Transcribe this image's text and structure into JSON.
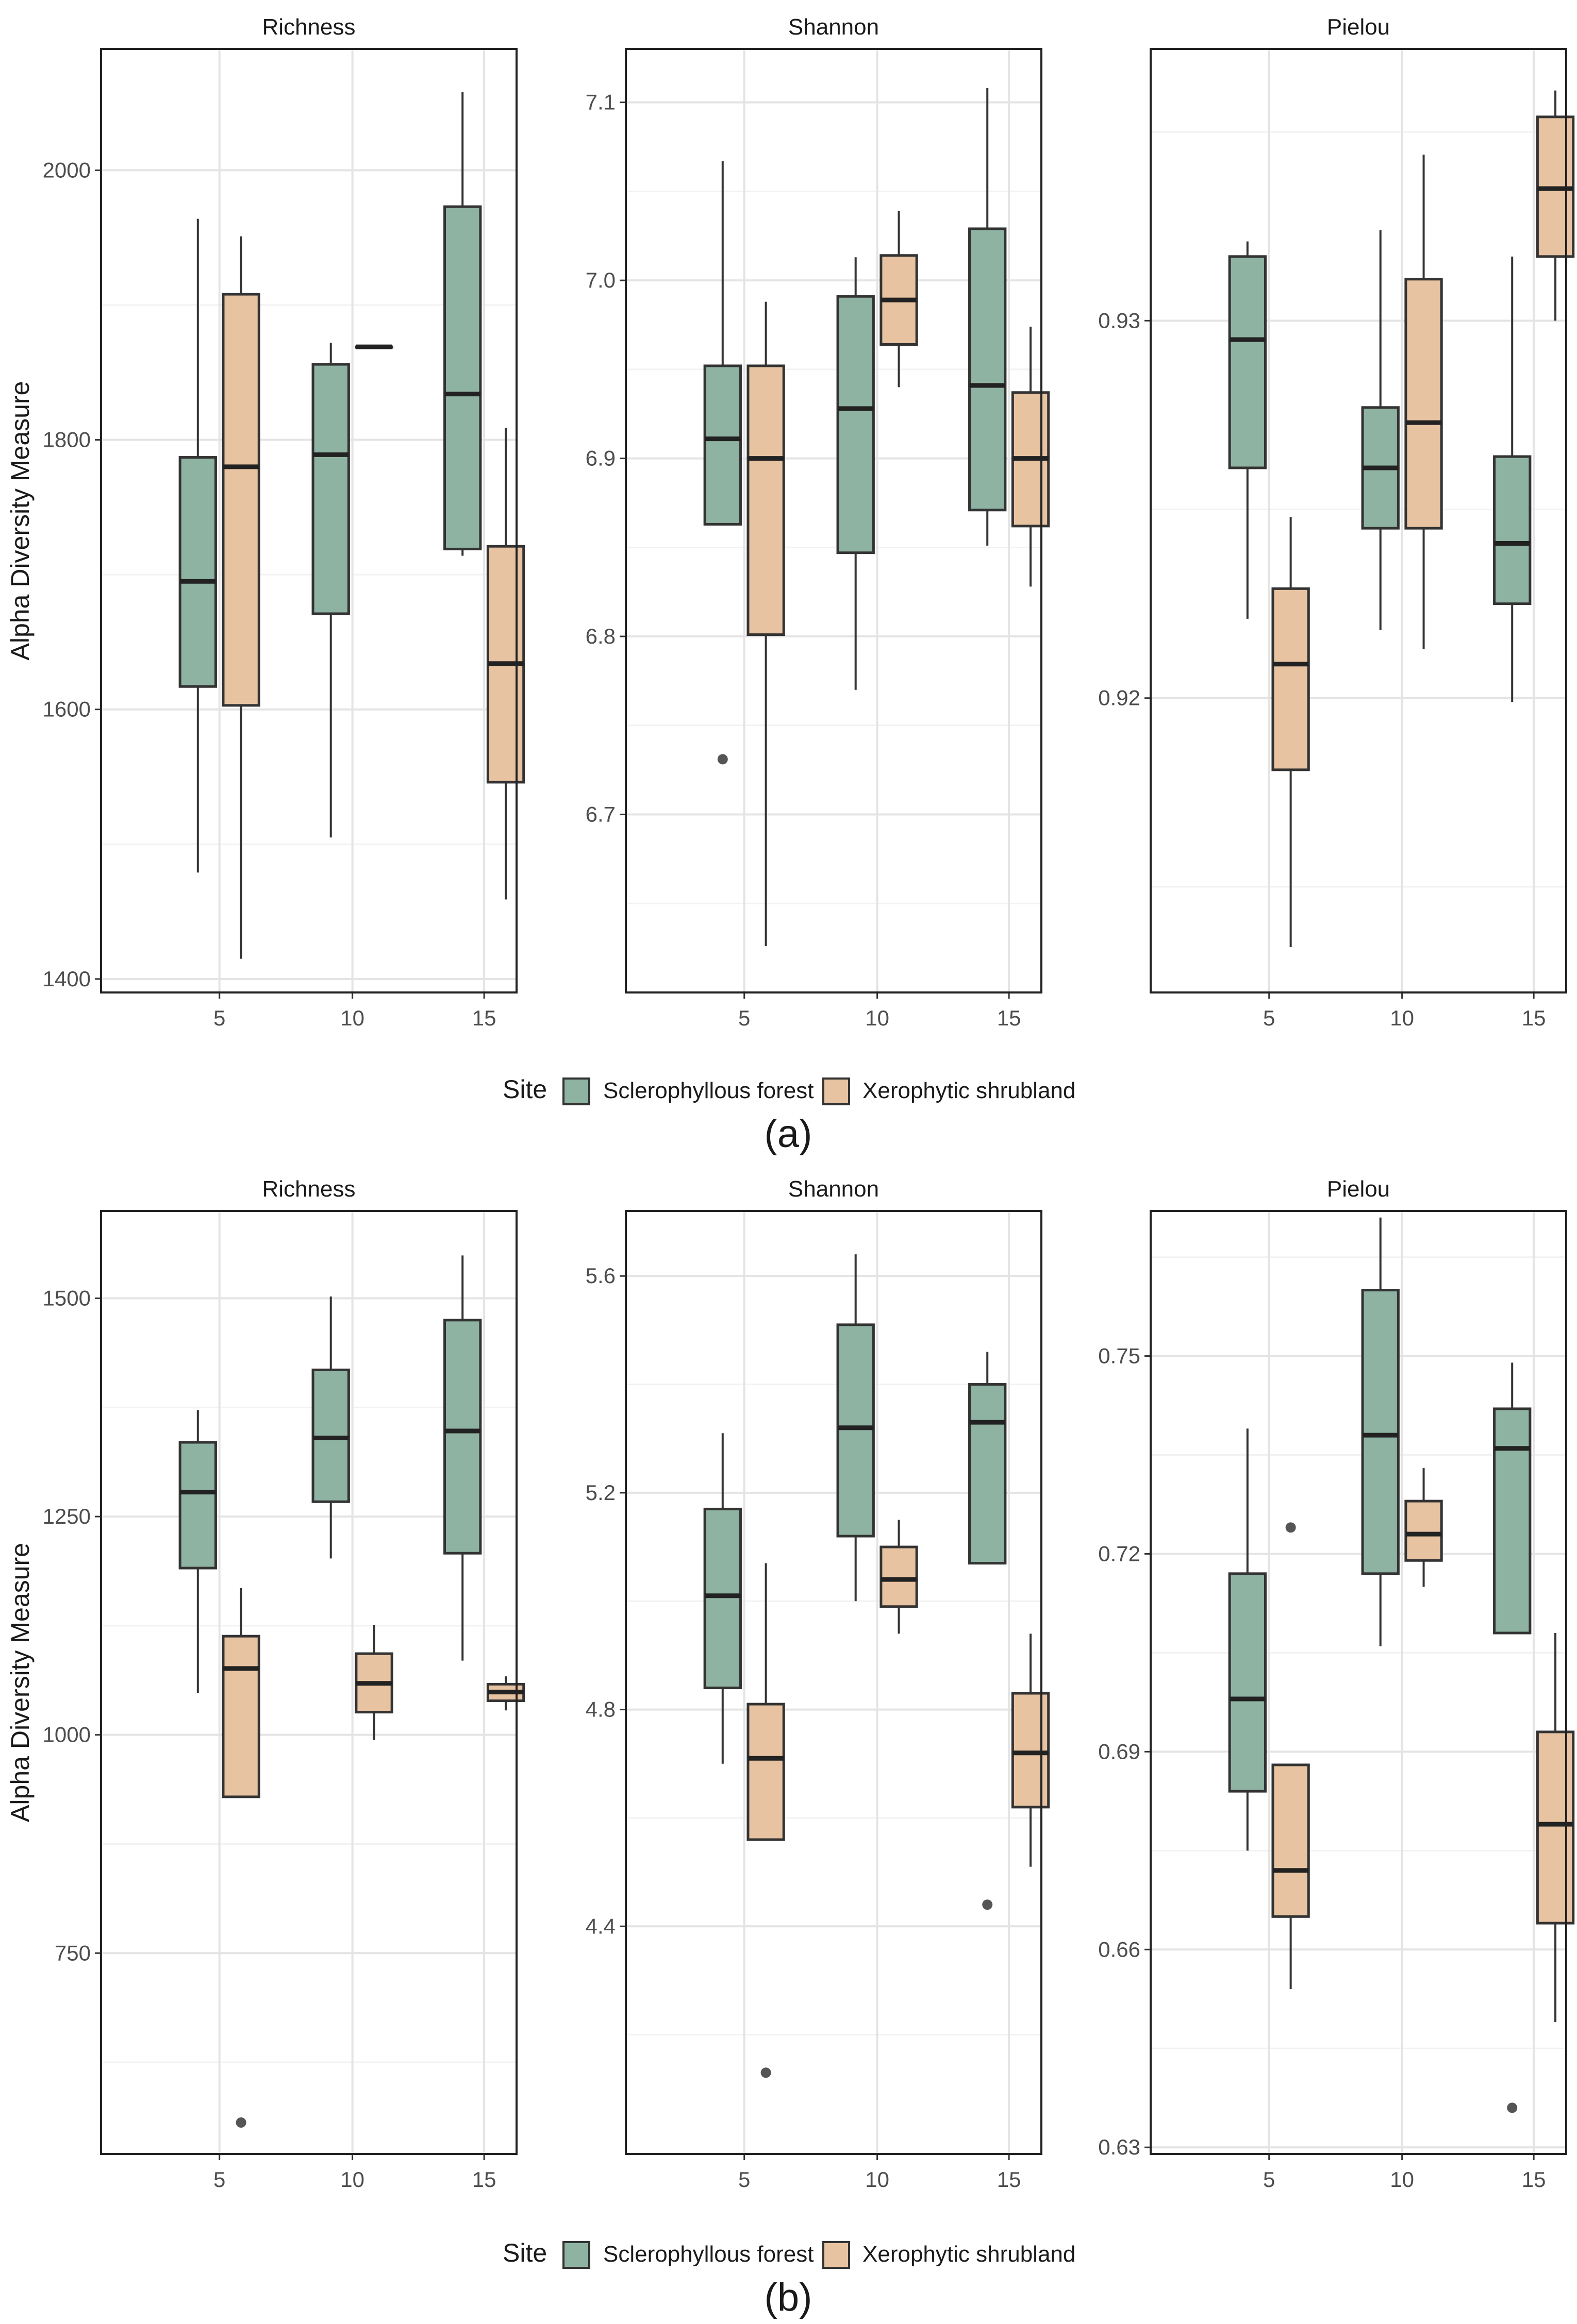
{
  "colors": {
    "sclerophyllous": "#8fb3a2",
    "xerophytic": "#e8c3a1",
    "box_stroke": "#333333",
    "grid_major": "#e4e4e4",
    "grid_minor": "#f2f2f2",
    "outlier": "#555555"
  },
  "legend": {
    "title": "Site",
    "items": [
      "Sclerophyllous forest",
      "Xerophytic shrubland"
    ]
  },
  "ylabel": "Alpha Diversity Measure",
  "panel_labels": [
    "(a)",
    "(b)"
  ],
  "chart_data": [
    {
      "type": "boxplot",
      "panel": "(a)",
      "title": "Richness",
      "xlabel": "",
      "ylabel": "Alpha Diversity Measure",
      "categories": [
        "5",
        "10",
        "15"
      ],
      "ylim": [
        1390,
        2090
      ],
      "yticks": [
        1400,
        1600,
        1800,
        2000
      ],
      "series": [
        {
          "name": "Sclerophyllous forest",
          "boxes": [
            {
              "x": "5",
              "min": 1479,
              "q1": 1617,
              "median": 1695,
              "q3": 1787,
              "max": 1964,
              "outliers": []
            },
            {
              "x": "10",
              "min": 1505,
              "q1": 1671,
              "median": 1789,
              "q3": 1856,
              "max": 1872,
              "outliers": []
            },
            {
              "x": "15",
              "min": 1714,
              "q1": 1719,
              "median": 1834,
              "q3": 1973,
              "max": 2058,
              "outliers": []
            }
          ]
        },
        {
          "name": "Xerophytic shrubland",
          "boxes": [
            {
              "x": "5",
              "min": 1415,
              "q1": 1603,
              "median": 1780,
              "q3": 1908,
              "max": 1951,
              "outliers": []
            },
            {
              "x": "10",
              "min": 1869,
              "q1": 1869,
              "median": 1869,
              "q3": 1869,
              "max": 1869,
              "outliers": []
            },
            {
              "x": "15",
              "min": 1459,
              "q1": 1546,
              "median": 1634,
              "q3": 1721,
              "max": 1809,
              "outliers": []
            }
          ]
        }
      ]
    },
    {
      "type": "boxplot",
      "panel": "(a)",
      "title": "Shannon",
      "xlabel": "",
      "ylabel": "",
      "categories": [
        "5",
        "10",
        "15"
      ],
      "ylim": [
        6.6,
        7.13
      ],
      "yticks": [
        6.7,
        6.8,
        6.9,
        7.0,
        7.1
      ],
      "series": [
        {
          "name": "Sclerophyllous forest",
          "boxes": [
            {
              "x": "5",
              "min": 6.863,
              "q1": 6.863,
              "median": 6.911,
              "q3": 6.952,
              "max": 7.067,
              "outliers": [
                6.731
              ]
            },
            {
              "x": "10",
              "min": 6.77,
              "q1": 6.847,
              "median": 6.928,
              "q3": 6.991,
              "max": 7.013,
              "outliers": []
            },
            {
              "x": "15",
              "min": 6.851,
              "q1": 6.871,
              "median": 6.941,
              "q3": 7.029,
              "max": 7.108,
              "outliers": []
            }
          ]
        },
        {
          "name": "Xerophytic shrubland",
          "boxes": [
            {
              "x": "5",
              "min": 6.626,
              "q1": 6.801,
              "median": 6.9,
              "q3": 6.952,
              "max": 6.988,
              "outliers": []
            },
            {
              "x": "10",
              "min": 6.94,
              "q1": 6.964,
              "median": 6.989,
              "q3": 7.014,
              "max": 7.039,
              "outliers": []
            },
            {
              "x": "15",
              "min": 6.828,
              "q1": 6.862,
              "median": 6.9,
              "q3": 6.937,
              "max": 6.974,
              "outliers": []
            }
          ]
        }
      ]
    },
    {
      "type": "boxplot",
      "panel": "(a)",
      "title": "Pielou",
      "xlabel": "",
      "ylabel": "",
      "categories": [
        "5",
        "10",
        "15"
      ],
      "ylim": [
        0.9122,
        0.9372
      ],
      "yticks": [
        0.92,
        0.93
      ],
      "series": [
        {
          "name": "Sclerophyllous forest",
          "boxes": [
            {
              "x": "5",
              "min": 0.9221,
              "q1": 0.9261,
              "median": 0.9295,
              "q3": 0.9317,
              "max": 0.9321,
              "outliers": []
            },
            {
              "x": "10",
              "min": 0.9218,
              "q1": 0.9245,
              "median": 0.9261,
              "q3": 0.9277,
              "max": 0.9324,
              "outliers": []
            },
            {
              "x": "15",
              "min": 0.9199,
              "q1": 0.9225,
              "median": 0.9241,
              "q3": 0.9264,
              "max": 0.9317,
              "outliers": []
            }
          ]
        },
        {
          "name": "Xerophytic shrubland",
          "boxes": [
            {
              "x": "5",
              "min": 0.9134,
              "q1": 0.9181,
              "median": 0.9209,
              "q3": 0.9229,
              "max": 0.9248,
              "outliers": []
            },
            {
              "x": "10",
              "min": 0.9213,
              "q1": 0.9245,
              "median": 0.9273,
              "q3": 0.9311,
              "max": 0.9344,
              "outliers": []
            },
            {
              "x": "15",
              "min": 0.93,
              "q1": 0.9317,
              "median": 0.9335,
              "q3": 0.9354,
              "max": 0.9361,
              "outliers": []
            }
          ]
        }
      ]
    },
    {
      "type": "boxplot",
      "panel": "(b)",
      "title": "Richness",
      "xlabel": "",
      "ylabel": "Alpha Diversity Measure",
      "categories": [
        "5",
        "10",
        "15"
      ],
      "ylim": [
        520,
        1600
      ],
      "yticks": [
        750,
        1000,
        1250,
        1500
      ],
      "series": [
        {
          "name": "Sclerophyllous forest",
          "boxes": [
            {
              "x": "5",
              "min": 1048,
              "q1": 1191,
              "median": 1278,
              "q3": 1335,
              "max": 1372,
              "outliers": []
            },
            {
              "x": "10",
              "min": 1202,
              "q1": 1267,
              "median": 1340,
              "q3": 1418,
              "max": 1502,
              "outliers": []
            },
            {
              "x": "15",
              "min": 1085,
              "q1": 1208,
              "median": 1348,
              "q3": 1475,
              "max": 1549,
              "outliers": []
            }
          ]
        },
        {
          "name": "Xerophytic shrubland",
          "boxes": [
            {
              "x": "5",
              "min": 929,
              "q1": 929,
              "median": 1076,
              "q3": 1113,
              "max": 1168,
              "outliers": [
                556
              ]
            },
            {
              "x": "10",
              "min": 994,
              "q1": 1026,
              "median": 1059,
              "q3": 1093,
              "max": 1126,
              "outliers": []
            },
            {
              "x": "15",
              "min": 1028,
              "q1": 1039,
              "median": 1049,
              "q3": 1058,
              "max": 1067,
              "outliers": []
            }
          ]
        }
      ]
    },
    {
      "type": "boxplot",
      "panel": "(b)",
      "title": "Shannon",
      "xlabel": "",
      "ylabel": "",
      "categories": [
        "5",
        "10",
        "15"
      ],
      "ylim": [
        3.98,
        5.72
      ],
      "yticks": [
        4.4,
        4.8,
        5.2,
        5.6
      ],
      "series": [
        {
          "name": "Sclerophyllous forest",
          "boxes": [
            {
              "x": "5",
              "min": 4.7,
              "q1": 4.84,
              "median": 5.01,
              "q3": 5.17,
              "max": 5.31,
              "outliers": []
            },
            {
              "x": "10",
              "min": 5.0,
              "q1": 5.12,
              "median": 5.32,
              "q3": 5.51,
              "max": 5.64,
              "outliers": []
            },
            {
              "x": "15",
              "min": 5.07,
              "q1": 5.07,
              "median": 5.33,
              "q3": 5.4,
              "max": 5.46,
              "outliers": [
                4.44
              ]
            }
          ]
        },
        {
          "name": "Xerophytic shrubland",
          "boxes": [
            {
              "x": "5",
              "min": 4.56,
              "q1": 4.56,
              "median": 4.71,
              "q3": 4.81,
              "max": 5.07,
              "outliers": [
                4.13
              ]
            },
            {
              "x": "10",
              "min": 4.94,
              "q1": 4.99,
              "median": 5.04,
              "q3": 5.1,
              "max": 5.15,
              "outliers": []
            },
            {
              "x": "15",
              "min": 4.51,
              "q1": 4.62,
              "median": 4.72,
              "q3": 4.83,
              "max": 4.94,
              "outliers": []
            }
          ]
        }
      ]
    },
    {
      "type": "boxplot",
      "panel": "(b)",
      "title": "Pielou",
      "xlabel": "",
      "ylabel": "",
      "categories": [
        "5",
        "10",
        "15"
      ],
      "ylim": [
        0.629,
        0.772
      ],
      "yticks": [
        0.63,
        0.66,
        0.69,
        0.72,
        0.75
      ],
      "series": [
        {
          "name": "Sclerophyllous forest",
          "boxes": [
            {
              "x": "5",
              "min": 0.675,
              "q1": 0.684,
              "median": 0.698,
              "q3": 0.717,
              "max": 0.739,
              "outliers": []
            },
            {
              "x": "10",
              "min": 0.706,
              "q1": 0.717,
              "median": 0.738,
              "q3": 0.76,
              "max": 0.771,
              "outliers": []
            },
            {
              "x": "15",
              "min": 0.708,
              "q1": 0.708,
              "median": 0.736,
              "q3": 0.742,
              "max": 0.749,
              "outliers": [
                0.636
              ]
            }
          ]
        },
        {
          "name": "Xerophytic shrubland",
          "boxes": [
            {
              "x": "5",
              "min": 0.654,
              "q1": 0.665,
              "median": 0.672,
              "q3": 0.688,
              "max": 0.688,
              "outliers": [
                0.724
              ]
            },
            {
              "x": "10",
              "min": 0.715,
              "q1": 0.719,
              "median": 0.723,
              "q3": 0.728,
              "max": 0.733,
              "outliers": []
            },
            {
              "x": "15",
              "min": 0.649,
              "q1": 0.664,
              "median": 0.679,
              "q3": 0.693,
              "max": 0.708,
              "outliers": []
            }
          ]
        }
      ]
    }
  ]
}
